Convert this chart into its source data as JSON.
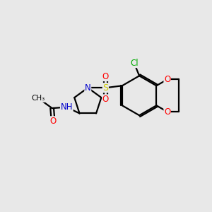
{
  "bg_color": "#e8e8e8",
  "bond_color": "#000000",
  "colors": {
    "N": "#0000cc",
    "O": "#ff0000",
    "S": "#cccc00",
    "Cl": "#00aa00",
    "H": "#555555",
    "C": "#000000"
  }
}
